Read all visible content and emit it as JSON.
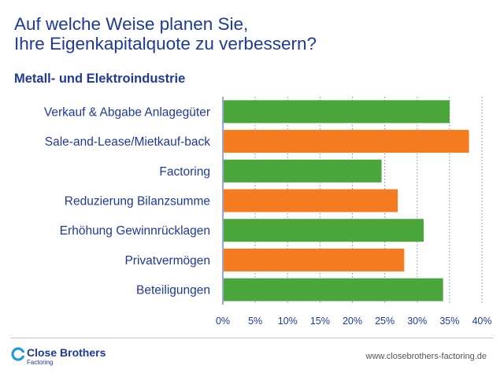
{
  "header": {
    "title_line1": "Auf welche Weise planen Sie,",
    "title_line2": "Ihre Eigenkapitalquote zu verbessern?",
    "subtitle": "Metall- und Elektroindustrie"
  },
  "chart_data": {
    "type": "bar",
    "orientation": "horizontal",
    "categories": [
      "Verkauf & Abgabe Anlagegüter",
      "Sale-and-Lease/Mietkauf-back",
      "Factoring",
      "Reduzierung Bilanzsumme",
      "Erhöhung Gewinnrücklagen",
      "Privatvermögen",
      "Beteiligungen"
    ],
    "values": [
      35,
      38,
      24.5,
      27,
      31,
      28,
      34
    ],
    "bar_colors": [
      "#4aa53a",
      "#f47b20",
      "#4aa53a",
      "#f47b20",
      "#4aa53a",
      "#f47b20",
      "#4aa53a"
    ],
    "xlim": [
      0,
      40
    ],
    "xticks": [
      "0%",
      "5%",
      "10%",
      "15%",
      "20%",
      "25%",
      "30%",
      "35%",
      "40%"
    ],
    "grid": true,
    "legend": "none"
  },
  "footer": {
    "brand_name": "Close Brothers",
    "brand_sub": "Factoring",
    "url": "www.closebrothers-factoring.de"
  },
  "colors": {
    "title": "#1f3a93",
    "green": "#4aa53a",
    "orange": "#f47b20",
    "gridline": "#1f3a93"
  }
}
